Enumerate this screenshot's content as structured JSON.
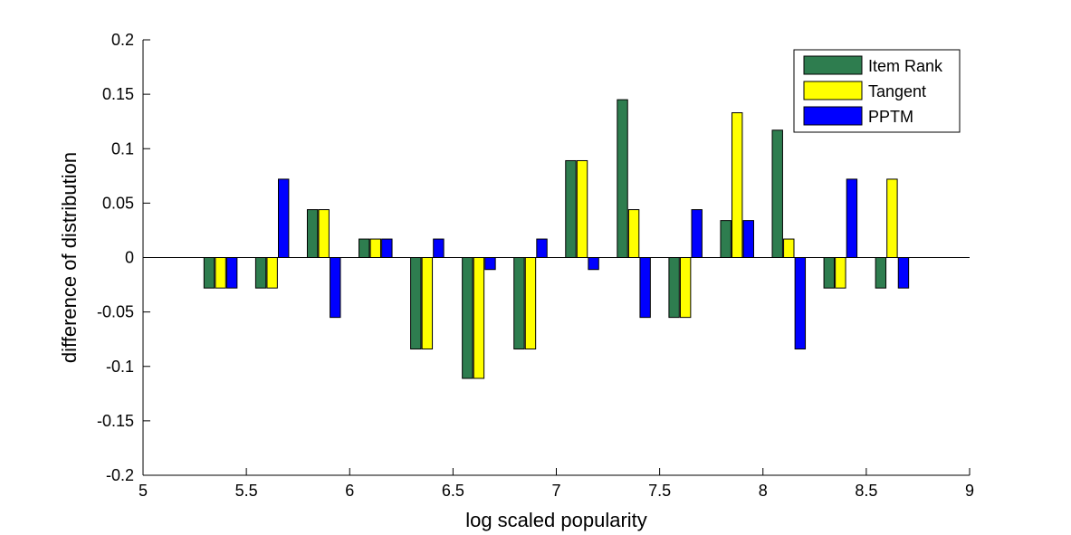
{
  "chart_data": {
    "type": "bar",
    "title": "",
    "xlabel": "log scaled popularity",
    "ylabel": "difference of distribution",
    "xlim": [
      5,
      9
    ],
    "ylim": [
      -0.2,
      0.2
    ],
    "x_ticks": [
      5,
      5.5,
      6,
      6.5,
      7,
      7.5,
      8,
      8.5,
      9
    ],
    "x_tick_labels": [
      "5",
      "5.5",
      "6",
      "6.5",
      "7",
      "7.5",
      "8",
      "8.5",
      "9"
    ],
    "y_ticks": [
      -0.2,
      -0.15,
      -0.1,
      -0.05,
      0,
      0.05,
      0.1,
      0.15,
      0.2
    ],
    "y_tick_labels": [
      "-0.2",
      "-0.15",
      "-0.1",
      "-0.05",
      "0",
      "0.05",
      "0.1",
      "0.15",
      "0.2"
    ],
    "grid": false,
    "legend_position": "top-right",
    "x": [
      5.375,
      5.625,
      5.875,
      6.125,
      6.375,
      6.625,
      6.875,
      7.125,
      7.375,
      7.625,
      7.875,
      8.125,
      8.375,
      8.625
    ],
    "series": [
      {
        "name": "Item Rank",
        "color": "#2e7d4f",
        "values": [
          -0.028,
          -0.028,
          0.044,
          0.017,
          -0.084,
          -0.111,
          -0.084,
          0.089,
          0.145,
          -0.055,
          0.034,
          0.117,
          -0.028,
          -0.028
        ]
      },
      {
        "name": "Tangent",
        "color": "#ffff00",
        "values": [
          -0.028,
          -0.028,
          0.044,
          0.017,
          -0.084,
          -0.111,
          -0.084,
          0.089,
          0.044,
          -0.055,
          0.133,
          0.017,
          -0.028,
          0.072
        ]
      },
      {
        "name": "PPTM",
        "color": "#0000ff",
        "values": [
          -0.028,
          0.072,
          -0.055,
          0.017,
          0.017,
          -0.011,
          0.017,
          -0.011,
          -0.055,
          0.044,
          0.034,
          -0.084,
          0.072,
          -0.028
        ]
      }
    ]
  }
}
